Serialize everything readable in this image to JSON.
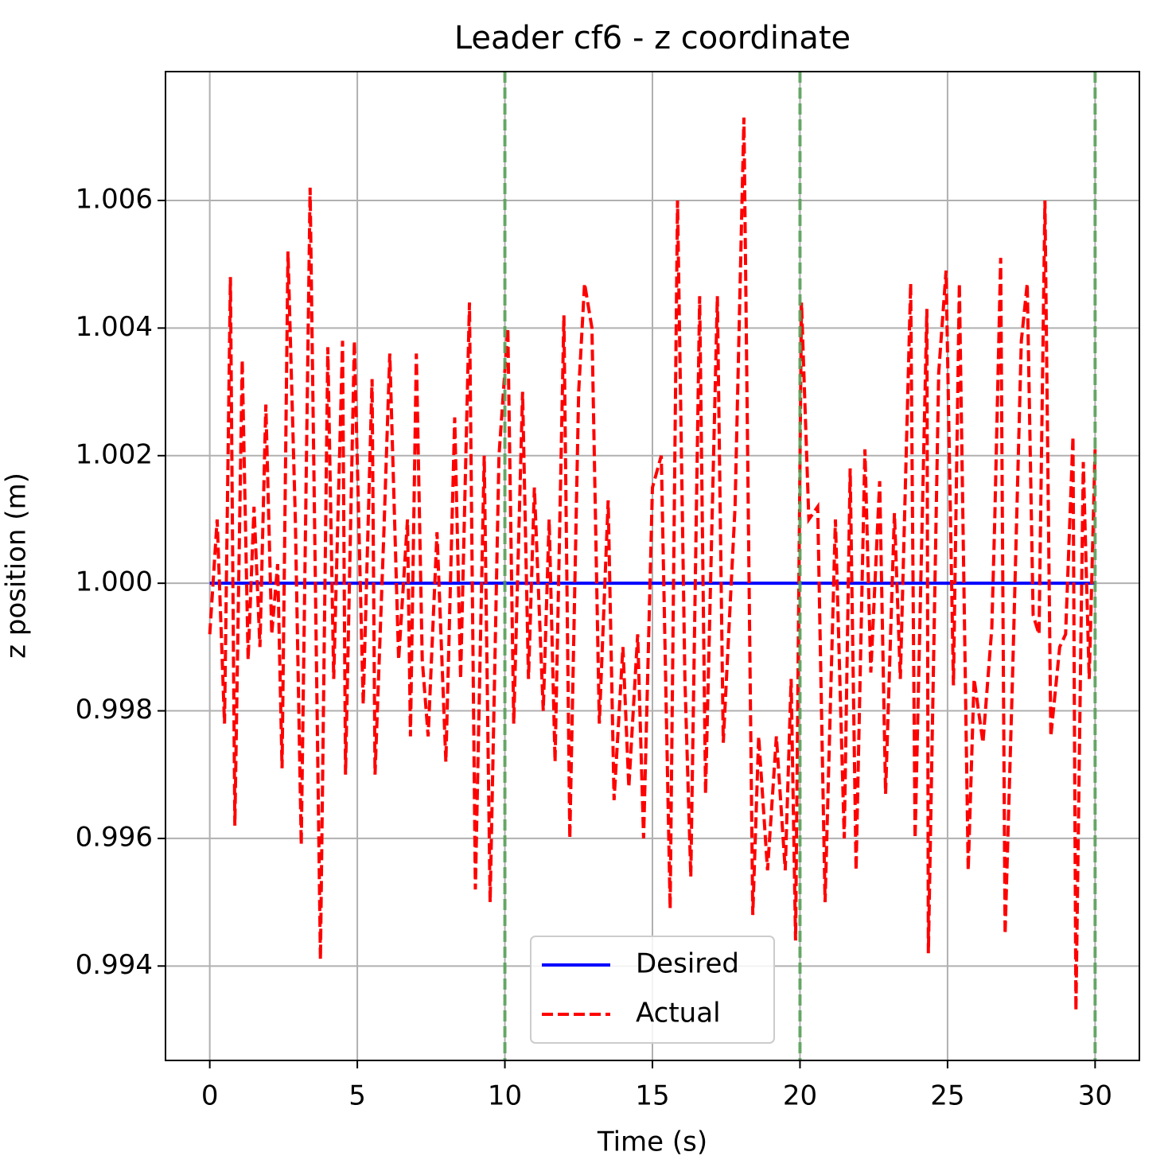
{
  "chart_data": {
    "type": "line",
    "title": "Leader cf6 - z coordinate",
    "xlabel": "Time (s)",
    "ylabel": "z position (m)",
    "series": [
      {
        "name": "Desired",
        "color": "#0000ff",
        "style": "solid",
        "x": [
          0,
          30
        ],
        "values": [
          1,
          1
        ]
      },
      {
        "name": "Actual",
        "color": "#ff0000",
        "style": "dashed",
        "x": [
          0,
          0.25,
          0.5,
          0.7,
          0.85,
          1.1,
          1.3,
          1.5,
          1.7,
          1.9,
          2.1,
          2.3,
          2.45,
          2.65,
          2.9,
          3.1,
          3.4,
          3.75,
          4.0,
          4.2,
          4.5,
          4.6,
          4.9,
          5.2,
          5.5,
          5.6,
          5.9,
          6.1,
          6.4,
          6.7,
          6.8,
          7.0,
          7.2,
          7.4,
          7.7,
          8.0,
          8.3,
          8.5,
          8.8,
          9.0,
          9.3,
          9.5,
          9.8,
          10.1,
          10.3,
          10.6,
          10.8,
          11.0,
          11.3,
          11.5,
          11.7,
          12.0,
          12.2,
          12.5,
          12.7,
          12.95,
          13.2,
          13.5,
          13.7,
          14.0,
          14.2,
          14.5,
          14.7,
          15.0,
          15.3,
          15.6,
          15.85,
          16.1,
          16.3,
          16.6,
          16.8,
          17.2,
          17.4,
          17.8,
          18.1,
          18.4,
          18.6,
          18.9,
          19.2,
          19.5,
          19.7,
          19.85,
          20.05,
          20.3,
          20.6,
          20.85,
          21.2,
          21.5,
          21.7,
          21.9,
          22.2,
          22.4,
          22.7,
          22.9,
          23.2,
          23.4,
          23.75,
          23.9,
          24.3,
          24.35,
          24.7,
          24.95,
          25.2,
          25.4,
          25.7,
          25.9,
          26.2,
          26.5,
          26.6,
          26.8,
          26.95,
          27.2,
          27.5,
          27.7,
          27.9,
          28.1,
          28.3,
          28.5,
          28.8,
          29.0,
          29.25,
          29.35,
          29.6,
          29.8,
          30.0
        ],
        "values": [
          0.9992,
          1.001,
          0.9978,
          1.0048,
          0.9962,
          1.0035,
          0.9988,
          1.0012,
          0.999,
          1.0028,
          0.9992,
          1.0003,
          0.9971,
          1.0052,
          1.001,
          0.9959,
          1.0062,
          0.9941,
          1.0037,
          0.9985,
          1.0038,
          0.997,
          1.0038,
          0.9981,
          1.0032,
          0.997,
          1.0008,
          1.0036,
          0.9988,
          1.001,
          0.9976,
          1.0036,
          0.9988,
          0.9976,
          1.0008,
          0.9972,
          1.0026,
          0.9985,
          1.0044,
          0.9952,
          1.002,
          0.995,
          1.002,
          1.004,
          0.9978,
          1.003,
          0.9985,
          1.0015,
          0.998,
          1.001,
          0.9972,
          1.0042,
          0.996,
          1.003,
          1.0047,
          1.004,
          0.9978,
          1.0013,
          0.9966,
          0.999,
          0.9968,
          0.9992,
          0.996,
          1.0015,
          1.002,
          0.9949,
          1.006,
          0.9985,
          0.9954,
          1.0045,
          0.9967,
          1.0045,
          0.9975,
          1.0012,
          1.0073,
          0.9948,
          0.9976,
          0.9955,
          0.9976,
          0.9955,
          0.9985,
          0.9944,
          1.0044,
          1.001,
          1.0012,
          0.995,
          1.001,
          0.996,
          1.0018,
          0.9955,
          1.0021,
          0.9986,
          1.0016,
          0.9967,
          1.0011,
          0.9985,
          1.0047,
          0.996,
          1.0043,
          0.9942,
          1.0033,
          1.0049,
          0.9984,
          1.0047,
          0.9955,
          0.9985,
          0.9975,
          0.9993,
          1.001,
          1.0051,
          0.9945,
          0.9985,
          1.0038,
          1.0047,
          0.9995,
          0.9992,
          1.006,
          0.9976,
          0.999,
          0.9992,
          1.0023,
          0.9933,
          1.0019,
          0.9985,
          1.0021
        ]
      }
    ],
    "xlim": [
      -1.5,
      31.5
    ],
    "ylim": [
      0.99252,
      1.00802
    ],
    "xticks": [
      0,
      5,
      10,
      15,
      20,
      25,
      30
    ],
    "yticks": [
      0.994,
      0.996,
      0.998,
      {
        "value": 1,
        "label": "1.000"
      },
      1.002,
      1.004,
      1.006
    ],
    "grid": true,
    "legend": "lower center",
    "vlines": [
      10,
      20,
      30
    ],
    "vline_color": "#55a055"
  }
}
